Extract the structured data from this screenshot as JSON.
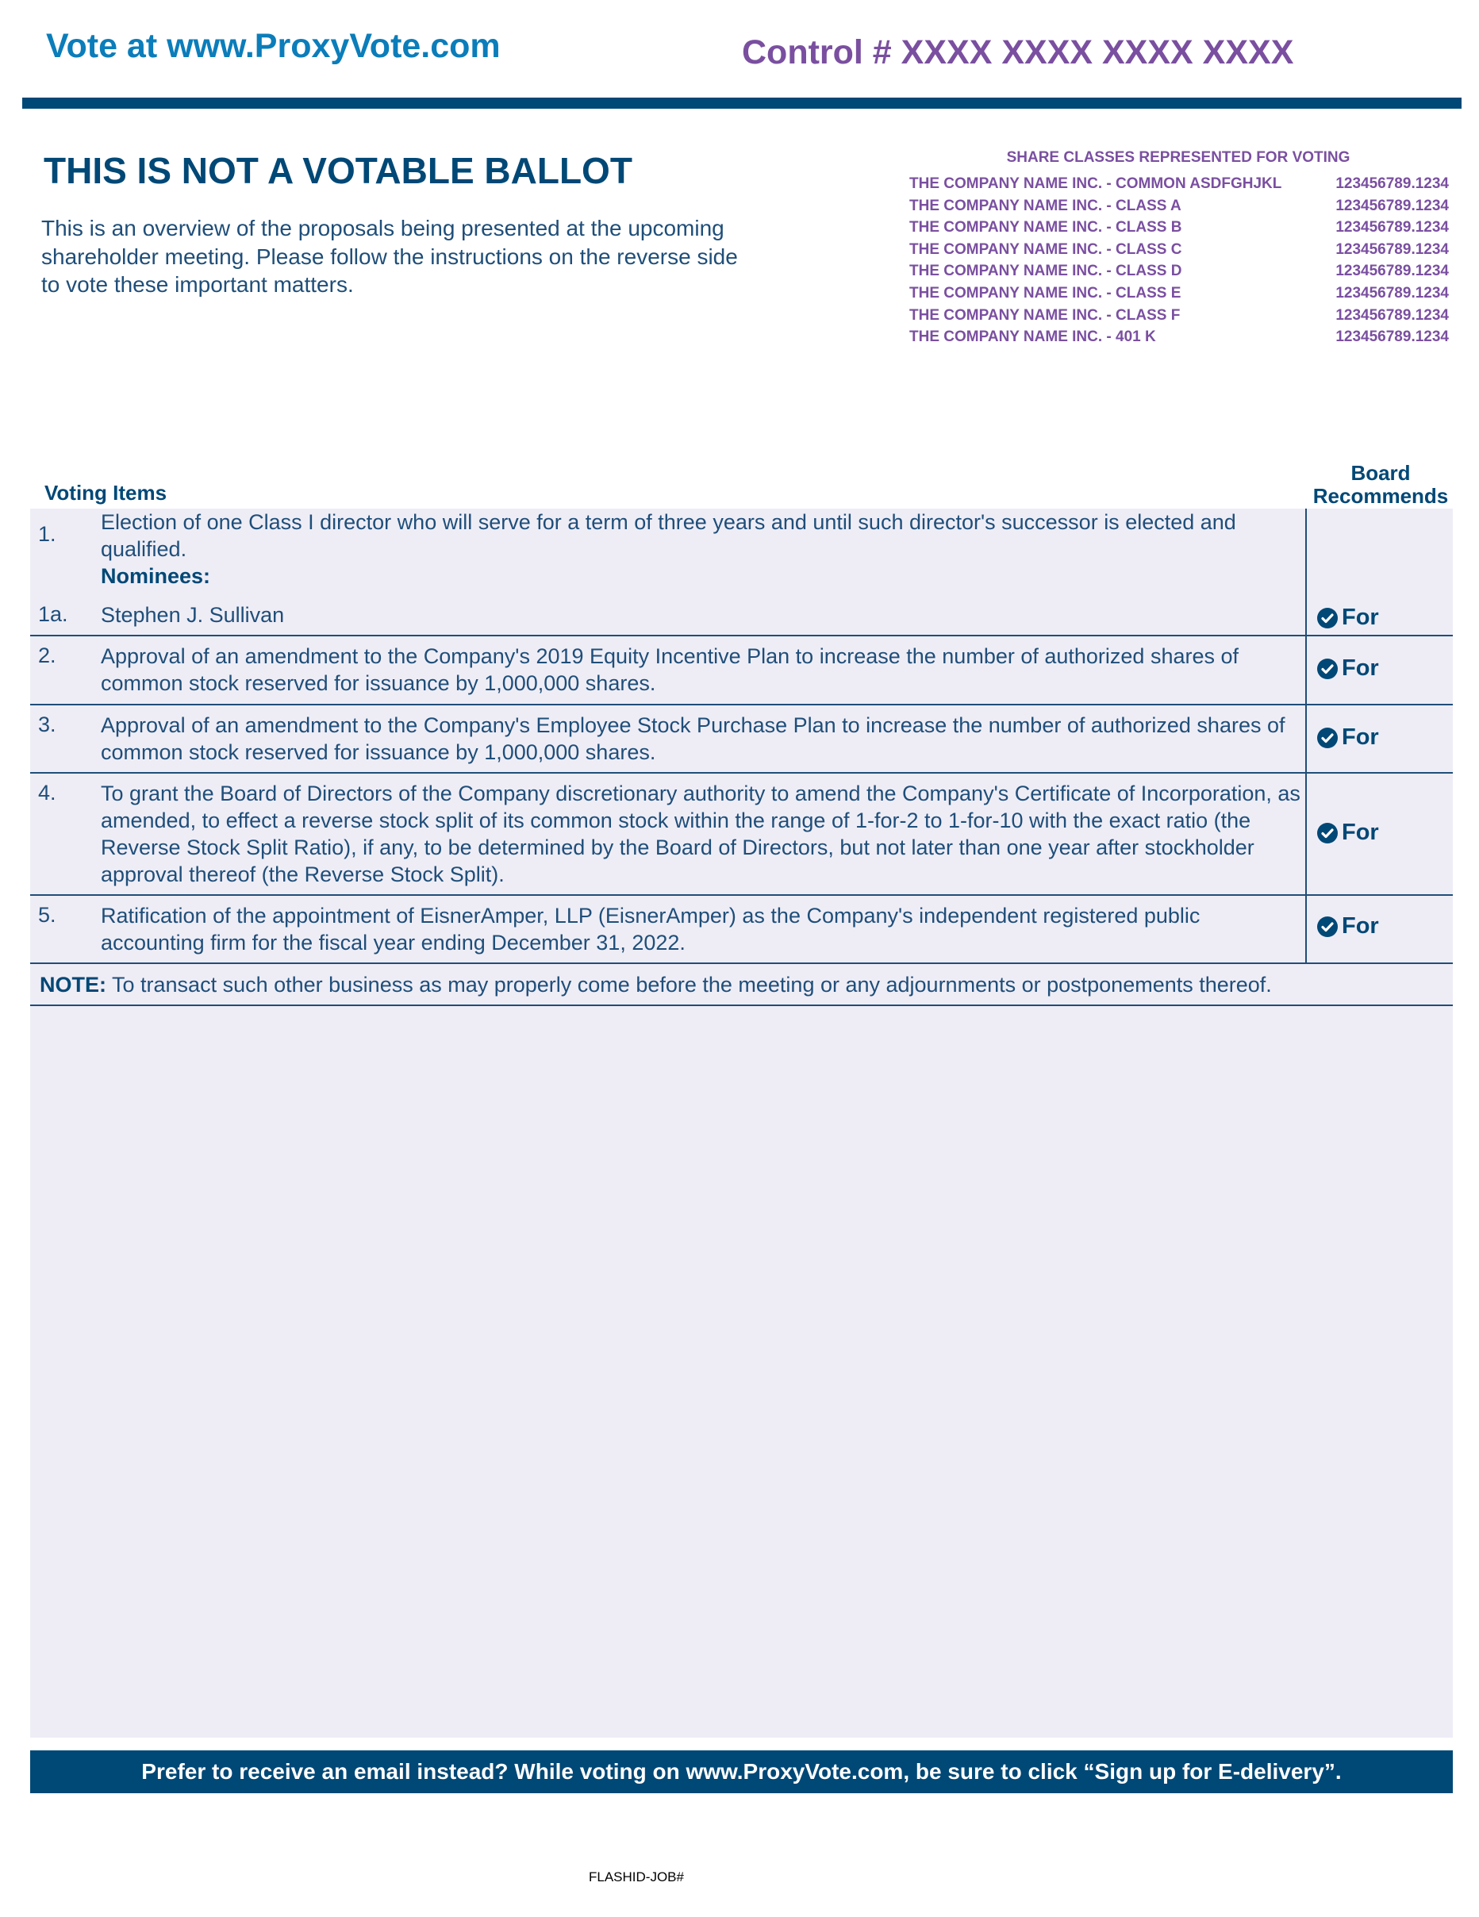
{
  "header": {
    "vote_at": "Vote at www.ProxyVote.com",
    "control": "Control # XXXX XXXX XXXX XXXX"
  },
  "title": "THIS IS NOT A VOTABLE BALLOT",
  "intro": "This is an overview of the proposals being presented at the upcoming shareholder meeting. Please follow the instructions on the reverse side to vote these important matters.",
  "share_classes": {
    "heading": "SHARE CLASSES REPRESENTED FOR VOTING",
    "rows": [
      {
        "name": "THE COMPANY NAME INC. - COMMON ASDFGHJKL",
        "value": "123456789.1234"
      },
      {
        "name": "THE COMPANY NAME INC. - CLASS A",
        "value": "123456789.1234"
      },
      {
        "name": "THE COMPANY NAME INC. - CLASS B",
        "value": "123456789.1234"
      },
      {
        "name": "THE COMPANY NAME INC. - CLASS C",
        "value": "123456789.1234"
      },
      {
        "name": "THE COMPANY NAME INC. - CLASS D",
        "value": "123456789.1234"
      },
      {
        "name": "THE COMPANY NAME INC. - CLASS E",
        "value": "123456789.1234"
      },
      {
        "name": "THE COMPANY NAME INC. - CLASS F",
        "value": "123456789.1234"
      },
      {
        "name": "THE COMPANY NAME INC. - 401 K",
        "value": "123456789.1234"
      }
    ]
  },
  "voting": {
    "items_label": "Voting Items",
    "board_label_1": "Board",
    "board_label_2": "Recommends",
    "item1": {
      "num": "1.",
      "text": "Election of one Class I director who will serve for a term of three years and until such director's successor is elected and qualified.",
      "nominees_label": "Nominees:"
    },
    "item1a": {
      "num": "1a.",
      "text": "Stephen J. Sullivan",
      "rec": "For"
    },
    "items": [
      {
        "num": "2.",
        "text": "Approval of an amendment to the Company's 2019 Equity Incentive Plan to increase the number of authorized shares of common stock reserved for issuance by 1,000,000 shares.",
        "rec": "For"
      },
      {
        "num": "3.",
        "text": "Approval of an amendment to the Company's Employee Stock Purchase Plan to increase the number of authorized shares of common stock reserved for issuance by 1,000,000 shares.",
        "rec": "For"
      },
      {
        "num": "4.",
        "text": "To grant the Board of Directors of the Company discretionary authority to amend the Company's Certificate of Incorporation, as amended, to effect a reverse stock split of its common stock within the range of 1-for-2 to 1-for-10 with the exact ratio (the Reverse Stock Split Ratio), if any, to be determined by the Board of Directors, but not later than one year after stockholder approval thereof (the Reverse Stock Split).",
        "rec": "For"
      },
      {
        "num": "5.",
        "text": "Ratification of the appointment of EisnerAmper, LLP (EisnerAmper) as the Company's independent registered public accounting firm for the fiscal year ending December 31, 2022.",
        "rec": "For"
      }
    ],
    "note_label": "NOTE:",
    "note_text": " To transact such other business as may properly come before the meeting or any adjournments or postponements thereof."
  },
  "footer": "Prefer to receive an email instead? While voting on www.ProxyVote.com, be sure to click “Sign up for E-delivery”.",
  "flashid": "FLASHID-JOB#",
  "colors": {
    "link_blue": "#0b7dba",
    "purple": "#7a4fa0",
    "navy": "#004876",
    "panel": "#eeedf6"
  }
}
